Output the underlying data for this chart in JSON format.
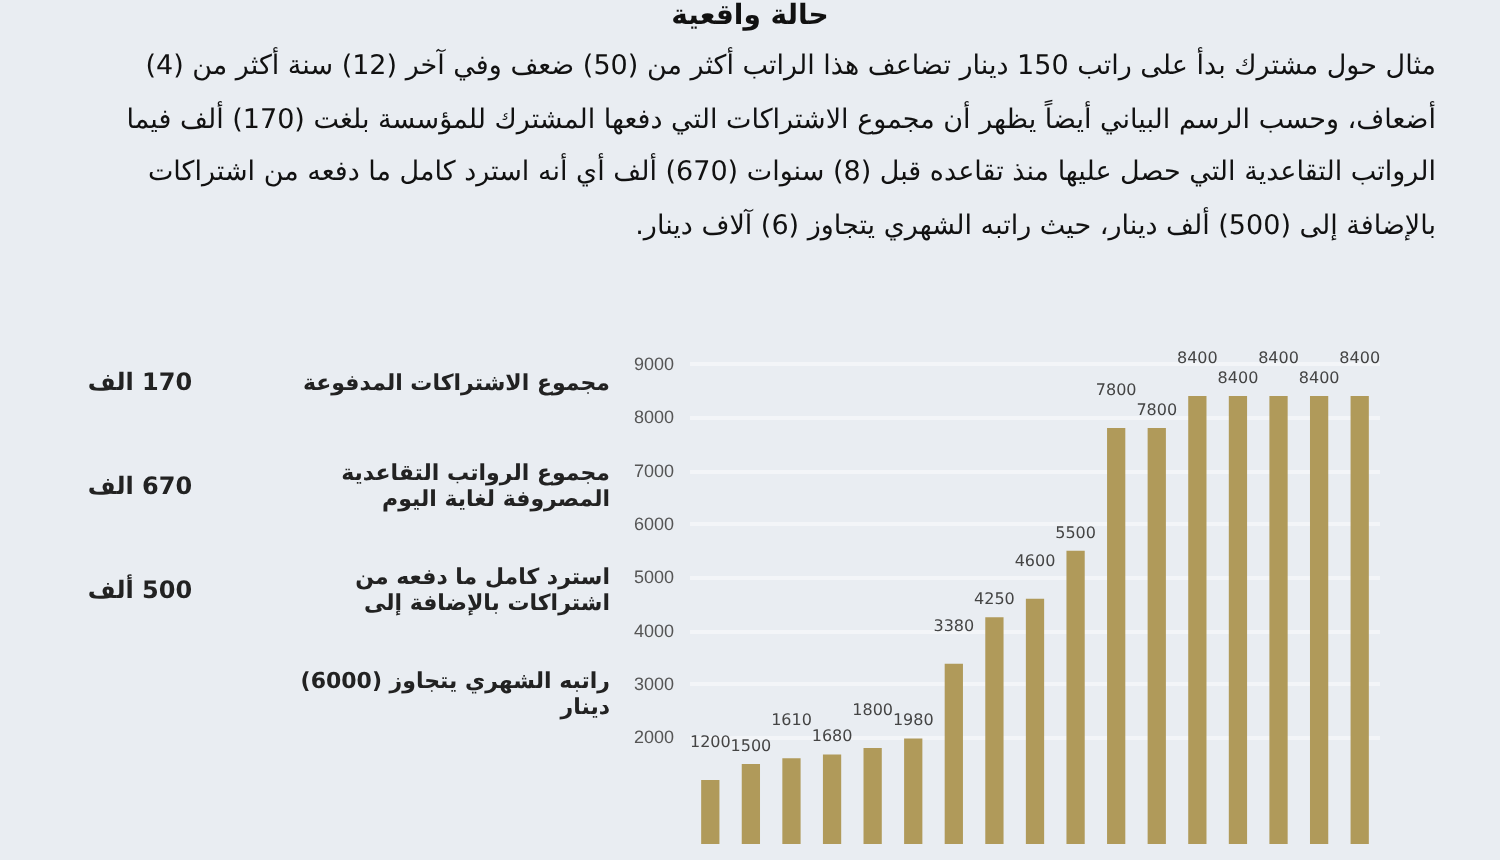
{
  "chart_data": {
    "type": "bar",
    "title": "حالة واقعية",
    "subtitle": "مثال حول مشترك بدأ على راتب 150 دينار تضاعف هذا الراتب أكثر من (50) ضعف وفي آخر (12) سنة أكثر من (4) أضعاف، وحسب الرسم البياني أيضاً يظهر أن مجموع الاشتراكات التي دفعها المشترك للمؤسسة بلغت (170) ألف فيما الرواتب التقاعدية التي حصل عليها منذ تقاعده قبل (8) سنوات (670) ألف أي أنه استرد كامل ما دفعه من اشتراكات بالإضافة إلى (500) ألف دينار، حيث راتبه الشهري يتجاوز (6) آلاف دينار.",
    "annotations": [
      "مجموع الاشتراكات المدفوعة",
      "170 الف",
      "مجموع الرواتب التقاعدية المصروفة لغاية اليوم",
      "670 الف",
      "استرد كامل ما دفعه من اشتراكات بالإضافة إلى",
      "500 ألف",
      "راتبه الشهري يتجاوز (6000) دينار"
    ],
    "categories": [
      null,
      null,
      null,
      null,
      null,
      null,
      null,
      null,
      null,
      null,
      null,
      null,
      null,
      null,
      null,
      null,
      null
    ],
    "values": [
      1200,
      1500,
      1610,
      1680,
      1800,
      1980,
      3380,
      4250,
      4600,
      5500,
      7800,
      7800,
      8400,
      8400,
      8400,
      8400,
      8400
    ],
    "color": "#b09a5a",
    "ylim": [
      0,
      9000
    ],
    "yticks": [
      2000,
      3000,
      4000,
      5000,
      6000,
      7000,
      8000,
      9000
    ],
    "grid": "y",
    "data_labels": true
  }
}
